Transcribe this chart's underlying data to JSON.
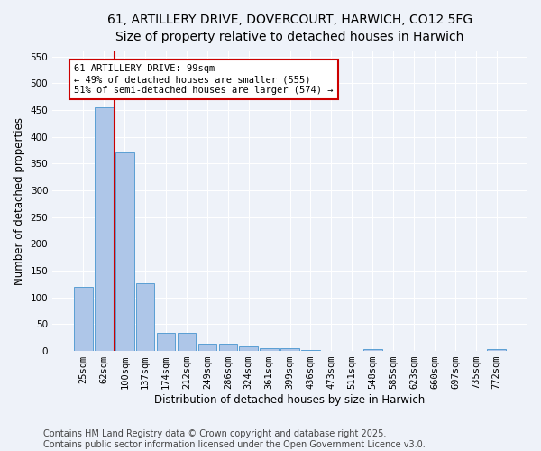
{
  "title_line1": "61, ARTILLERY DRIVE, DOVERCOURT, HARWICH, CO12 5FG",
  "title_line2": "Size of property relative to detached houses in Harwich",
  "xlabel": "Distribution of detached houses by size in Harwich",
  "ylabel": "Number of detached properties",
  "categories": [
    "25sqm",
    "62sqm",
    "100sqm",
    "137sqm",
    "174sqm",
    "212sqm",
    "249sqm",
    "286sqm",
    "324sqm",
    "361sqm",
    "399sqm",
    "436sqm",
    "473sqm",
    "511sqm",
    "548sqm",
    "585sqm",
    "623sqm",
    "660sqm",
    "697sqm",
    "735sqm",
    "772sqm"
  ],
  "values": [
    120,
    455,
    370,
    127,
    34,
    34,
    13,
    13,
    9,
    5,
    5,
    1,
    0,
    0,
    3,
    0,
    0,
    0,
    0,
    0,
    4
  ],
  "bar_color": "#aec6e8",
  "bar_edge_color": "#5a9fd4",
  "annotation_title": "61 ARTILLERY DRIVE: 99sqm",
  "annotation_line2": "← 49% of detached houses are smaller (555)",
  "annotation_line3": "51% of semi-detached houses are larger (574) →",
  "annotation_box_color": "#ffffff",
  "annotation_border_color": "#cc0000",
  "red_line_color": "#cc0000",
  "footer_line1": "Contains HM Land Registry data © Crown copyright and database right 2025.",
  "footer_line2": "Contains public sector information licensed under the Open Government Licence v3.0.",
  "ylim": [
    0,
    560
  ],
  "yticks": [
    0,
    50,
    100,
    150,
    200,
    250,
    300,
    350,
    400,
    450,
    500,
    550
  ],
  "background_color": "#eef2f9",
  "grid_color": "#ffffff",
  "title_fontsize": 10,
  "axis_label_fontsize": 8.5,
  "tick_fontsize": 7.5,
  "footer_fontsize": 7
}
